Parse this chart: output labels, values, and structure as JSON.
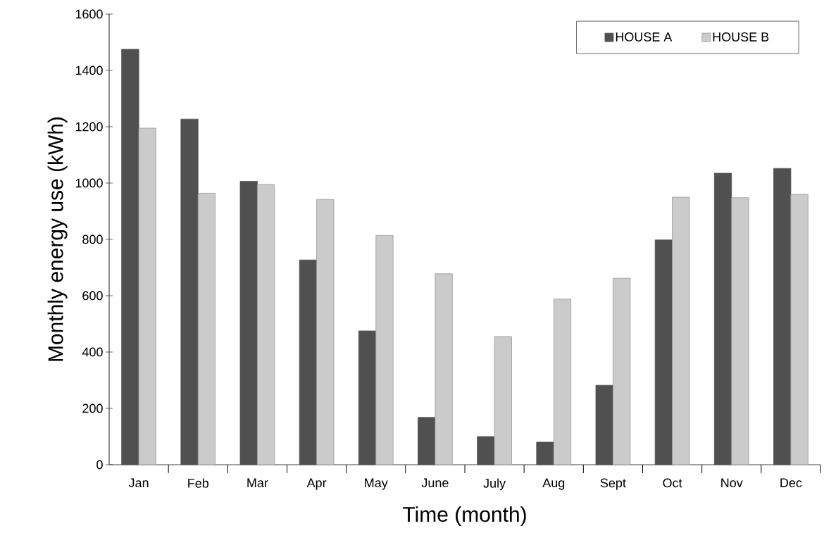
{
  "chart_data": {
    "type": "bar",
    "xlabel": "Time (month)",
    "ylabel": "Monthly energy use (kWh)",
    "categories": [
      "Jan",
      "Feb",
      "Mar",
      "Apr",
      "May",
      "June",
      "July",
      "Aug",
      "Sept",
      "Oct",
      "Nov",
      "Dec"
    ],
    "series": [
      {
        "name": "HOUSE A",
        "color": "#505050",
        "values": [
          1475,
          1227,
          1006,
          727,
          475,
          168,
          100,
          80,
          282,
          798,
          1035,
          1052
        ]
      },
      {
        "name": "HOUSE B",
        "color": "#cbcbcb",
        "values": [
          1195,
          964,
          995,
          942,
          814,
          678,
          455,
          588,
          662,
          950,
          948,
          960
        ]
      }
    ],
    "ylim": [
      0,
      1600
    ],
    "yticks": [
      0,
      200,
      400,
      600,
      800,
      1000,
      1200,
      1400,
      1600
    ],
    "legend": "top right"
  }
}
